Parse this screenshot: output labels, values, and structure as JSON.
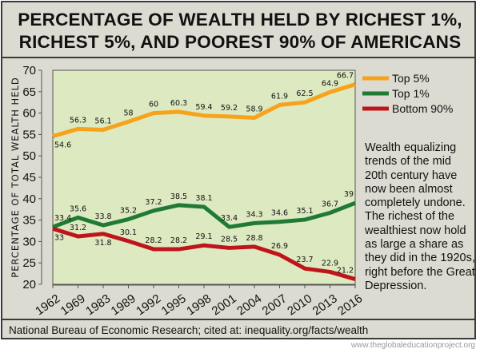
{
  "title_line1": "PERCENTAGE OF WEALTH HELD BY RICHEST 1%,",
  "title_line2": "RICHEST 5%, AND POOREST 90% OF AMERICANS",
  "annotation": "Wealth equalizing trends of the mid 20th century have now been almost completely undone. The richest of the wealthiest now hold as large a share as they did in the 1920s, right before the Great Depression.",
  "footer": "National Bureau of Economic Research; cited at: inequality.org/facts/wealth",
  "watermark": "www.theglobaleducationproject.org",
  "chart_data": {
    "type": "line",
    "title": "PERCENTAGE OF WEALTH HELD BY RICHEST 1%, RICHEST 5%, AND POOREST 90% OF AMERICANS",
    "xlabel": "",
    "ylabel": "PERCENTAGE OF TOTAL WEALTH HELD",
    "categories": [
      "1962",
      "1969",
      "1983",
      "1989",
      "1992",
      "1995",
      "1998",
      "2001",
      "2004",
      "2007",
      "2010",
      "2013",
      "2016"
    ],
    "ylim": [
      20,
      70
    ],
    "yticks": [
      20,
      25,
      30,
      35,
      40,
      45,
      50,
      55,
      60,
      65,
      70
    ],
    "grid": false,
    "legend_position": "right",
    "series": [
      {
        "name": "Top 5%",
        "color": "#f7a21b",
        "values": [
          54.6,
          56.3,
          56.1,
          58,
          60,
          60.3,
          59.4,
          59.2,
          58.9,
          61.9,
          62.5,
          64.9,
          66.7
        ]
      },
      {
        "name": "Top 1%",
        "color": "#1e7a35",
        "values": [
          33.4,
          35.6,
          33.8,
          35.2,
          37.2,
          38.5,
          38.1,
          33.4,
          34.3,
          34.6,
          35.1,
          36.7,
          39
        ]
      },
      {
        "name": "Bottom 90%",
        "color": "#c0141c",
        "values": [
          33,
          31.2,
          31.8,
          30.1,
          28.2,
          28.2,
          29.1,
          28.5,
          28.8,
          26.9,
          23.7,
          22.9,
          21.2
        ]
      }
    ],
    "plot_background": "#dde9c0"
  }
}
